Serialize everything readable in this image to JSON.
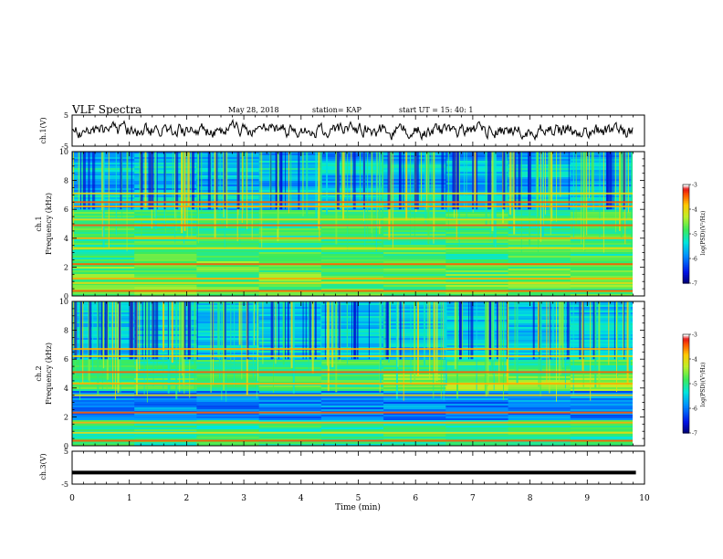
{
  "header": {
    "title": "VLF Spectra",
    "date": "May 28, 2018",
    "station": "station= KAP",
    "start": "start  UT =   15: 40: 1"
  },
  "chart_data": [
    {
      "type": "line",
      "panel": "ch1-waveform",
      "ylabel": "ch.1(V)",
      "yticks": [
        "5",
        "-5"
      ],
      "ylim": [
        -5,
        5
      ],
      "xlim": [
        0,
        10
      ],
      "series_color": "#000000",
      "note_values": "raw noisy waveform around 0 V"
    },
    {
      "type": "heatmap",
      "panel": "ch1-spectrogram",
      "ylabel_1": "ch.1",
      "ylabel_2": "Frequency  (kHz)",
      "yticks": [
        "0",
        "2",
        "4",
        "6",
        "8",
        "10"
      ],
      "ylim": [
        0,
        10
      ],
      "xlim": [
        0,
        10
      ],
      "colorbar": {
        "label": "log(PSD)(V²/Hz)",
        "ticks": [
          "-3",
          "-4",
          "-5",
          "-6",
          "-7"
        ],
        "range": [
          -7,
          -3
        ]
      },
      "bands_khz": [
        0.35,
        0.9,
        1.2,
        2.2,
        3.3,
        4.0,
        4.9,
        5.3,
        6.2,
        6.5,
        7.1
      ]
    },
    {
      "type": "heatmap",
      "panel": "ch2-spectrogram",
      "ylabel_1": "ch.2",
      "ylabel_2": "Frequency  (kHz)",
      "yticks": [
        "0",
        "2",
        "4",
        "6",
        "8",
        "10"
      ],
      "ylim": [
        0,
        10
      ],
      "xlim": [
        0,
        10
      ],
      "colorbar": {
        "label": "log(PSD)(V²/Hz)",
        "ticks": [
          "-3",
          "-4",
          "-5",
          "-6",
          "-7"
        ],
        "range": [
          -7,
          -3
        ]
      },
      "bands_khz": [
        0.35,
        0.9,
        1.6,
        2.3,
        3.5,
        4.3,
        5.1,
        6.2,
        6.7
      ]
    },
    {
      "type": "line",
      "panel": "ch3-waveform",
      "ylabel": "ch.3(V)",
      "yticks": [
        "5",
        "-5"
      ],
      "ylim": [
        -5,
        5
      ],
      "xlim": [
        0,
        10
      ],
      "series": [
        {
          "x": [
            0,
            9.85
          ],
          "y": [
            -1.5,
            -1.5
          ]
        }
      ],
      "series_color": "#000000"
    }
  ],
  "xaxis": {
    "label": "Time  (min)",
    "ticks": [
      "0",
      "1",
      "2",
      "3",
      "4",
      "5",
      "6",
      "7",
      "8",
      "9",
      "10"
    ]
  }
}
